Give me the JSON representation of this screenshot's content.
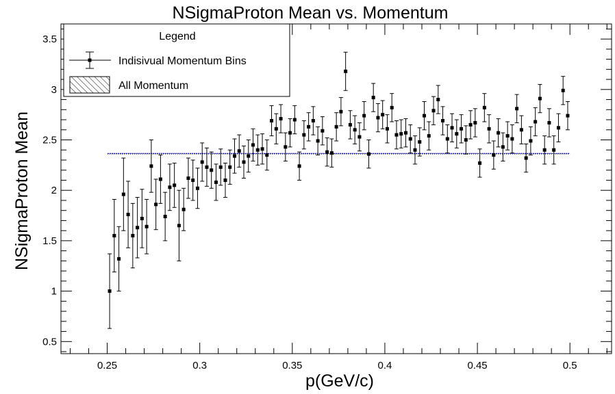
{
  "chart_data": {
    "type": "scatter",
    "title": "NSigmaProton Mean vs. Momentum",
    "xlabel": "p(GeV/c)",
    "ylabel": "NSigmaProton Mean",
    "xlim": [
      0.225,
      0.5225
    ],
    "ylim": [
      0.38,
      3.65
    ],
    "x_ticks": [
      "0.25",
      "0.3",
      "0.35",
      "0.4",
      "0.45",
      "0.5"
    ],
    "y_ticks": [
      "0.5",
      "1",
      "1.5",
      "2",
      "2.5",
      "3",
      "3.5"
    ],
    "grid": false,
    "legend": {
      "title": "Legend",
      "placement": "top-left",
      "entries": [
        "Indisivual Momentum Bins",
        "All Momentum"
      ]
    },
    "series": [
      {
        "name": "Indisivual Momentum Bins",
        "style": "points-with-errorbars",
        "color": "#000000",
        "x": [
          0.2513,
          0.2538,
          0.2563,
          0.2588,
          0.2613,
          0.2638,
          0.2663,
          0.2688,
          0.2713,
          0.2738,
          0.2763,
          0.2788,
          0.2813,
          0.2838,
          0.2863,
          0.2888,
          0.2913,
          0.2938,
          0.2963,
          0.2988,
          0.3013,
          0.3038,
          0.3063,
          0.3088,
          0.3113,
          0.3138,
          0.3163,
          0.3188,
          0.3213,
          0.3238,
          0.3263,
          0.3288,
          0.3313,
          0.3338,
          0.3363,
          0.3388,
          0.3413,
          0.3438,
          0.3463,
          0.3488,
          0.3513,
          0.3538,
          0.3563,
          0.3588,
          0.3613,
          0.3638,
          0.3663,
          0.3688,
          0.3713,
          0.3738,
          0.3763,
          0.3788,
          0.3813,
          0.3838,
          0.3863,
          0.3888,
          0.3913,
          0.3938,
          0.3963,
          0.3988,
          0.4013,
          0.4038,
          0.4063,
          0.4088,
          0.4113,
          0.4138,
          0.4163,
          0.4188,
          0.4213,
          0.4238,
          0.4263,
          0.4288,
          0.4313,
          0.4338,
          0.4363,
          0.4388,
          0.4413,
          0.4438,
          0.4463,
          0.4488,
          0.4513,
          0.4538,
          0.4563,
          0.4588,
          0.4613,
          0.4638,
          0.4663,
          0.4688,
          0.4713,
          0.4738,
          0.4763,
          0.4788,
          0.4813,
          0.4838,
          0.4863,
          0.4888,
          0.4913,
          0.4938,
          0.4963,
          0.4988
        ],
        "y": [
          1.0,
          1.55,
          1.32,
          1.96,
          1.76,
          1.55,
          1.63,
          1.72,
          1.64,
          2.24,
          1.86,
          2.11,
          1.74,
          2.03,
          2.05,
          1.65,
          1.81,
          2.12,
          2.1,
          2.02,
          2.28,
          2.23,
          2.2,
          2.08,
          2.23,
          2.1,
          2.23,
          2.34,
          2.39,
          2.28,
          2.34,
          2.45,
          2.4,
          2.41,
          2.35,
          2.69,
          2.61,
          2.71,
          2.43,
          2.57,
          2.7,
          2.24,
          2.55,
          2.63,
          2.69,
          2.49,
          2.59,
          2.38,
          2.37,
          2.63,
          2.78,
          3.18,
          2.65,
          2.6,
          2.53,
          2.74,
          2.36,
          2.92,
          2.72,
          2.75,
          2.61,
          2.82,
          2.55,
          2.56,
          2.57,
          2.51,
          2.4,
          2.48,
          2.74,
          2.54,
          2.79,
          2.9,
          2.69,
          2.51,
          2.62,
          2.56,
          2.61,
          2.5,
          2.65,
          2.67,
          2.27,
          2.82,
          2.61,
          2.35,
          2.57,
          2.43,
          2.54,
          2.51,
          2.81,
          2.6,
          2.32,
          2.49,
          2.68,
          2.91,
          2.4,
          2.67,
          2.4,
          2.62,
          2.99,
          2.74
        ],
        "yerr": [
          0.37,
          0.36,
          0.32,
          0.36,
          0.33,
          0.32,
          0.3,
          0.29,
          0.27,
          0.26,
          0.25,
          0.24,
          0.24,
          0.23,
          0.22,
          0.35,
          0.21,
          0.2,
          0.2,
          0.2,
          0.19,
          0.19,
          0.18,
          0.18,
          0.18,
          0.17,
          0.17,
          0.17,
          0.16,
          0.16,
          0.16,
          0.16,
          0.15,
          0.15,
          0.15,
          0.15,
          0.15,
          0.14,
          0.14,
          0.14,
          0.14,
          0.14,
          0.14,
          0.14,
          0.14,
          0.14,
          0.14,
          0.14,
          0.14,
          0.14,
          0.14,
          0.19,
          0.14,
          0.14,
          0.14,
          0.14,
          0.14,
          0.14,
          0.14,
          0.14,
          0.14,
          0.14,
          0.14,
          0.14,
          0.14,
          0.14,
          0.14,
          0.14,
          0.14,
          0.14,
          0.14,
          0.14,
          0.14,
          0.14,
          0.14,
          0.14,
          0.14,
          0.14,
          0.14,
          0.14,
          0.14,
          0.14,
          0.14,
          0.14,
          0.14,
          0.14,
          0.14,
          0.14,
          0.14,
          0.14,
          0.14,
          0.14,
          0.14,
          0.14,
          0.14,
          0.14,
          0.14,
          0.14,
          0.14,
          0.14
        ]
      },
      {
        "name": "All Momentum",
        "style": "horizontal-band",
        "color": "#0000cc",
        "x_range": [
          0.2502,
          0.5
        ],
        "value": 2.365
      }
    ]
  }
}
